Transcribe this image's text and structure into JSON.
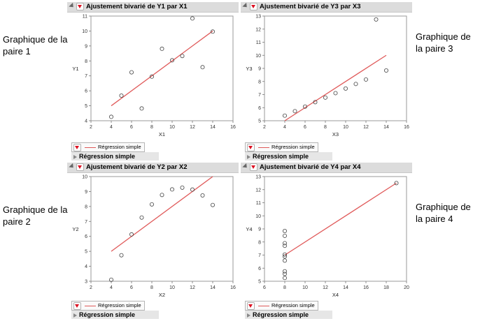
{
  "side_labels": {
    "pair1": "Graphique de la paire 1",
    "pair2": "Graphique de la paire 2",
    "pair3": "Graphique de la paire 3",
    "pair4": "Graphique de la paire 4"
  },
  "colors": {
    "regression_line": "#e05a5a",
    "point_stroke": "#444444",
    "header_bg": "#dcdcdc"
  },
  "panels": [
    {
      "title": "Ajustement bivarié de Y1 par X1",
      "legend": "Régression simple",
      "section": "Régression simple"
    },
    {
      "title": "Ajustement bivarié de Y3 par X3",
      "legend": "Régression simple",
      "section": "Régression simple"
    },
    {
      "title": "Ajustement bivarié de Y2 par X2",
      "legend": "Régression simple",
      "section": "Régression simple"
    },
    {
      "title": "Ajustement bivarié de Y4 par X4",
      "legend": "Régression simple",
      "section": "Régression simple"
    }
  ],
  "chart_data": [
    {
      "type": "scatter",
      "title": "Ajustement bivarié de Y1 par X1",
      "xlabel": "X1",
      "ylabel": "Y1",
      "xlim": [
        2,
        16
      ],
      "ylim": [
        4,
        11
      ],
      "xticks": [
        2,
        4,
        6,
        8,
        10,
        12,
        14,
        16
      ],
      "yticks": [
        4,
        5,
        6,
        7,
        8,
        9,
        10,
        11
      ],
      "points": {
        "x": [
          10,
          8,
          13,
          9,
          11,
          14,
          6,
          4,
          12,
          7,
          5
        ],
        "y": [
          8.04,
          6.95,
          7.58,
          8.81,
          8.33,
          9.96,
          7.24,
          4.26,
          10.84,
          4.82,
          5.68
        ]
      },
      "fit_line": {
        "x": [
          4,
          14
        ],
        "y": [
          5.0,
          10.0
        ]
      }
    },
    {
      "type": "scatter",
      "title": "Ajustement bivarié de Y3 par X3",
      "xlabel": "X3",
      "ylabel": "Y3",
      "xlim": [
        2,
        16
      ],
      "ylim": [
        5,
        13
      ],
      "xticks": [
        2,
        4,
        6,
        8,
        10,
        12,
        14,
        16
      ],
      "yticks": [
        5,
        6,
        7,
        8,
        9,
        10,
        11,
        12,
        13
      ],
      "points": {
        "x": [
          10,
          8,
          13,
          9,
          11,
          14,
          6,
          4,
          12,
          7,
          5
        ],
        "y": [
          7.46,
          6.77,
          12.74,
          7.11,
          7.81,
          8.84,
          6.08,
          5.39,
          8.15,
          6.42,
          5.73
        ]
      },
      "fit_line": {
        "x": [
          4,
          14
        ],
        "y": [
          5.0,
          10.0
        ]
      }
    },
    {
      "type": "scatter",
      "title": "Ajustement bivarié de Y2 par X2",
      "xlabel": "X2",
      "ylabel": "Y2",
      "xlim": [
        2,
        16
      ],
      "ylim": [
        3,
        10
      ],
      "xticks": [
        2,
        4,
        6,
        8,
        10,
        12,
        14,
        16
      ],
      "yticks": [
        3,
        4,
        5,
        6,
        7,
        8,
        9,
        10
      ],
      "points": {
        "x": [
          10,
          8,
          13,
          9,
          11,
          14,
          6,
          4,
          12,
          7,
          5
        ],
        "y": [
          9.14,
          8.14,
          8.74,
          8.77,
          9.26,
          8.1,
          6.13,
          3.1,
          9.13,
          7.26,
          4.74
        ]
      },
      "fit_line": {
        "x": [
          4,
          14
        ],
        "y": [
          5.0,
          10.0
        ]
      }
    },
    {
      "type": "scatter",
      "title": "Ajustement bivarié de Y4 par X4",
      "xlabel": "X4",
      "ylabel": "Y4",
      "xlim": [
        6,
        20
      ],
      "ylim": [
        5,
        13
      ],
      "xticks": [
        6,
        8,
        10,
        12,
        14,
        16,
        18,
        20
      ],
      "yticks": [
        5,
        6,
        7,
        8,
        9,
        10,
        11,
        12,
        13
      ],
      "points": {
        "x": [
          8,
          8,
          8,
          8,
          8,
          8,
          8,
          19,
          8,
          8,
          8
        ],
        "y": [
          6.58,
          5.76,
          7.71,
          8.84,
          8.47,
          7.04,
          5.25,
          12.5,
          5.56,
          7.91,
          6.89
        ]
      },
      "fit_line": {
        "x": [
          8,
          19
        ],
        "y": [
          7.0,
          12.5
        ]
      }
    }
  ]
}
